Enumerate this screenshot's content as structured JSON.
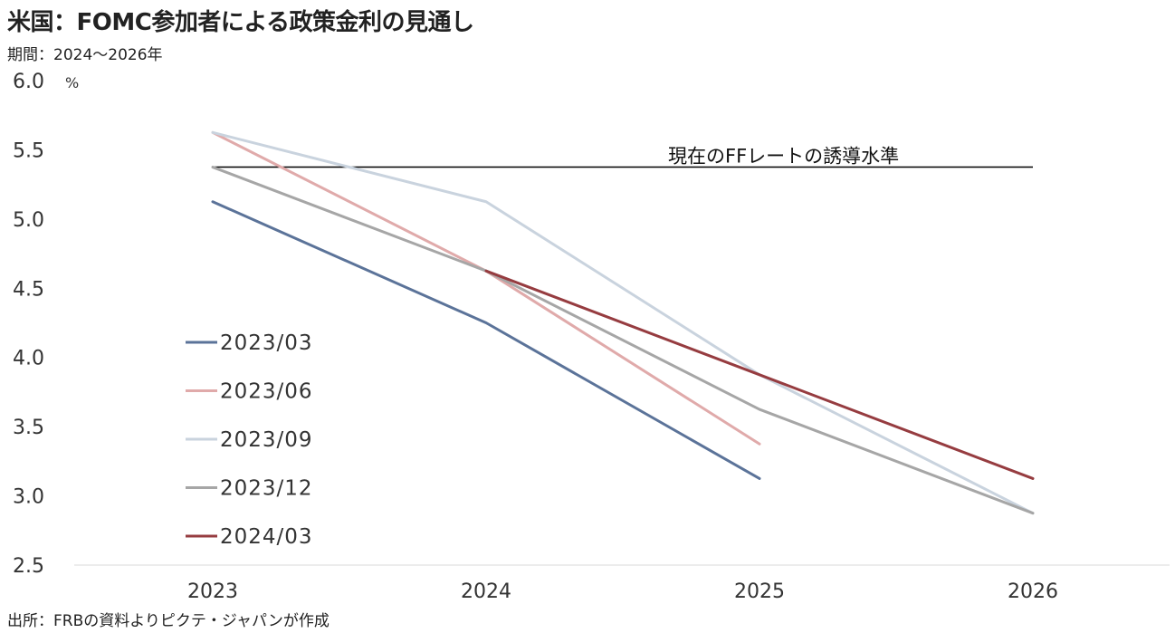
{
  "title": "米国：FOMC参加者による政策金利の見通し",
  "subtitle": "期間：2024～2026年",
  "source": "出所：FRBの資料よりピクテ・ジャパンが作成",
  "chart_data": {
    "type": "line",
    "x": [
      "2023",
      "2024",
      "2025",
      "2026"
    ],
    "ylim": [
      2.5,
      6.0
    ],
    "yticks": [
      "2.5",
      "3.0",
      "3.5",
      "4.0",
      "4.5",
      "5.0",
      "5.5",
      "6.0"
    ],
    "yunit": "%",
    "legend_position": "left-bottom",
    "grid": false,
    "series": [
      {
        "name": "2023/03",
        "color": "#5b7399",
        "values": [
          5.125,
          4.25,
          3.125,
          null
        ]
      },
      {
        "name": "2023/06",
        "color": "#e0aaaa",
        "values": [
          5.625,
          4.625,
          3.375,
          null
        ]
      },
      {
        "name": "2023/09",
        "color": "#c9d3de",
        "values": [
          5.625,
          5.125,
          3.875,
          2.875
        ]
      },
      {
        "name": "2023/12",
        "color": "#a6a6a6",
        "values": [
          5.375,
          4.625,
          3.625,
          2.875
        ]
      },
      {
        "name": "2024/03",
        "color": "#963c40",
        "values": [
          null,
          4.625,
          3.875,
          3.125
        ]
      }
    ],
    "reference_line": {
      "label": "現在のFFレートの誘導水準",
      "value": 5.375,
      "color": "#000000"
    }
  }
}
